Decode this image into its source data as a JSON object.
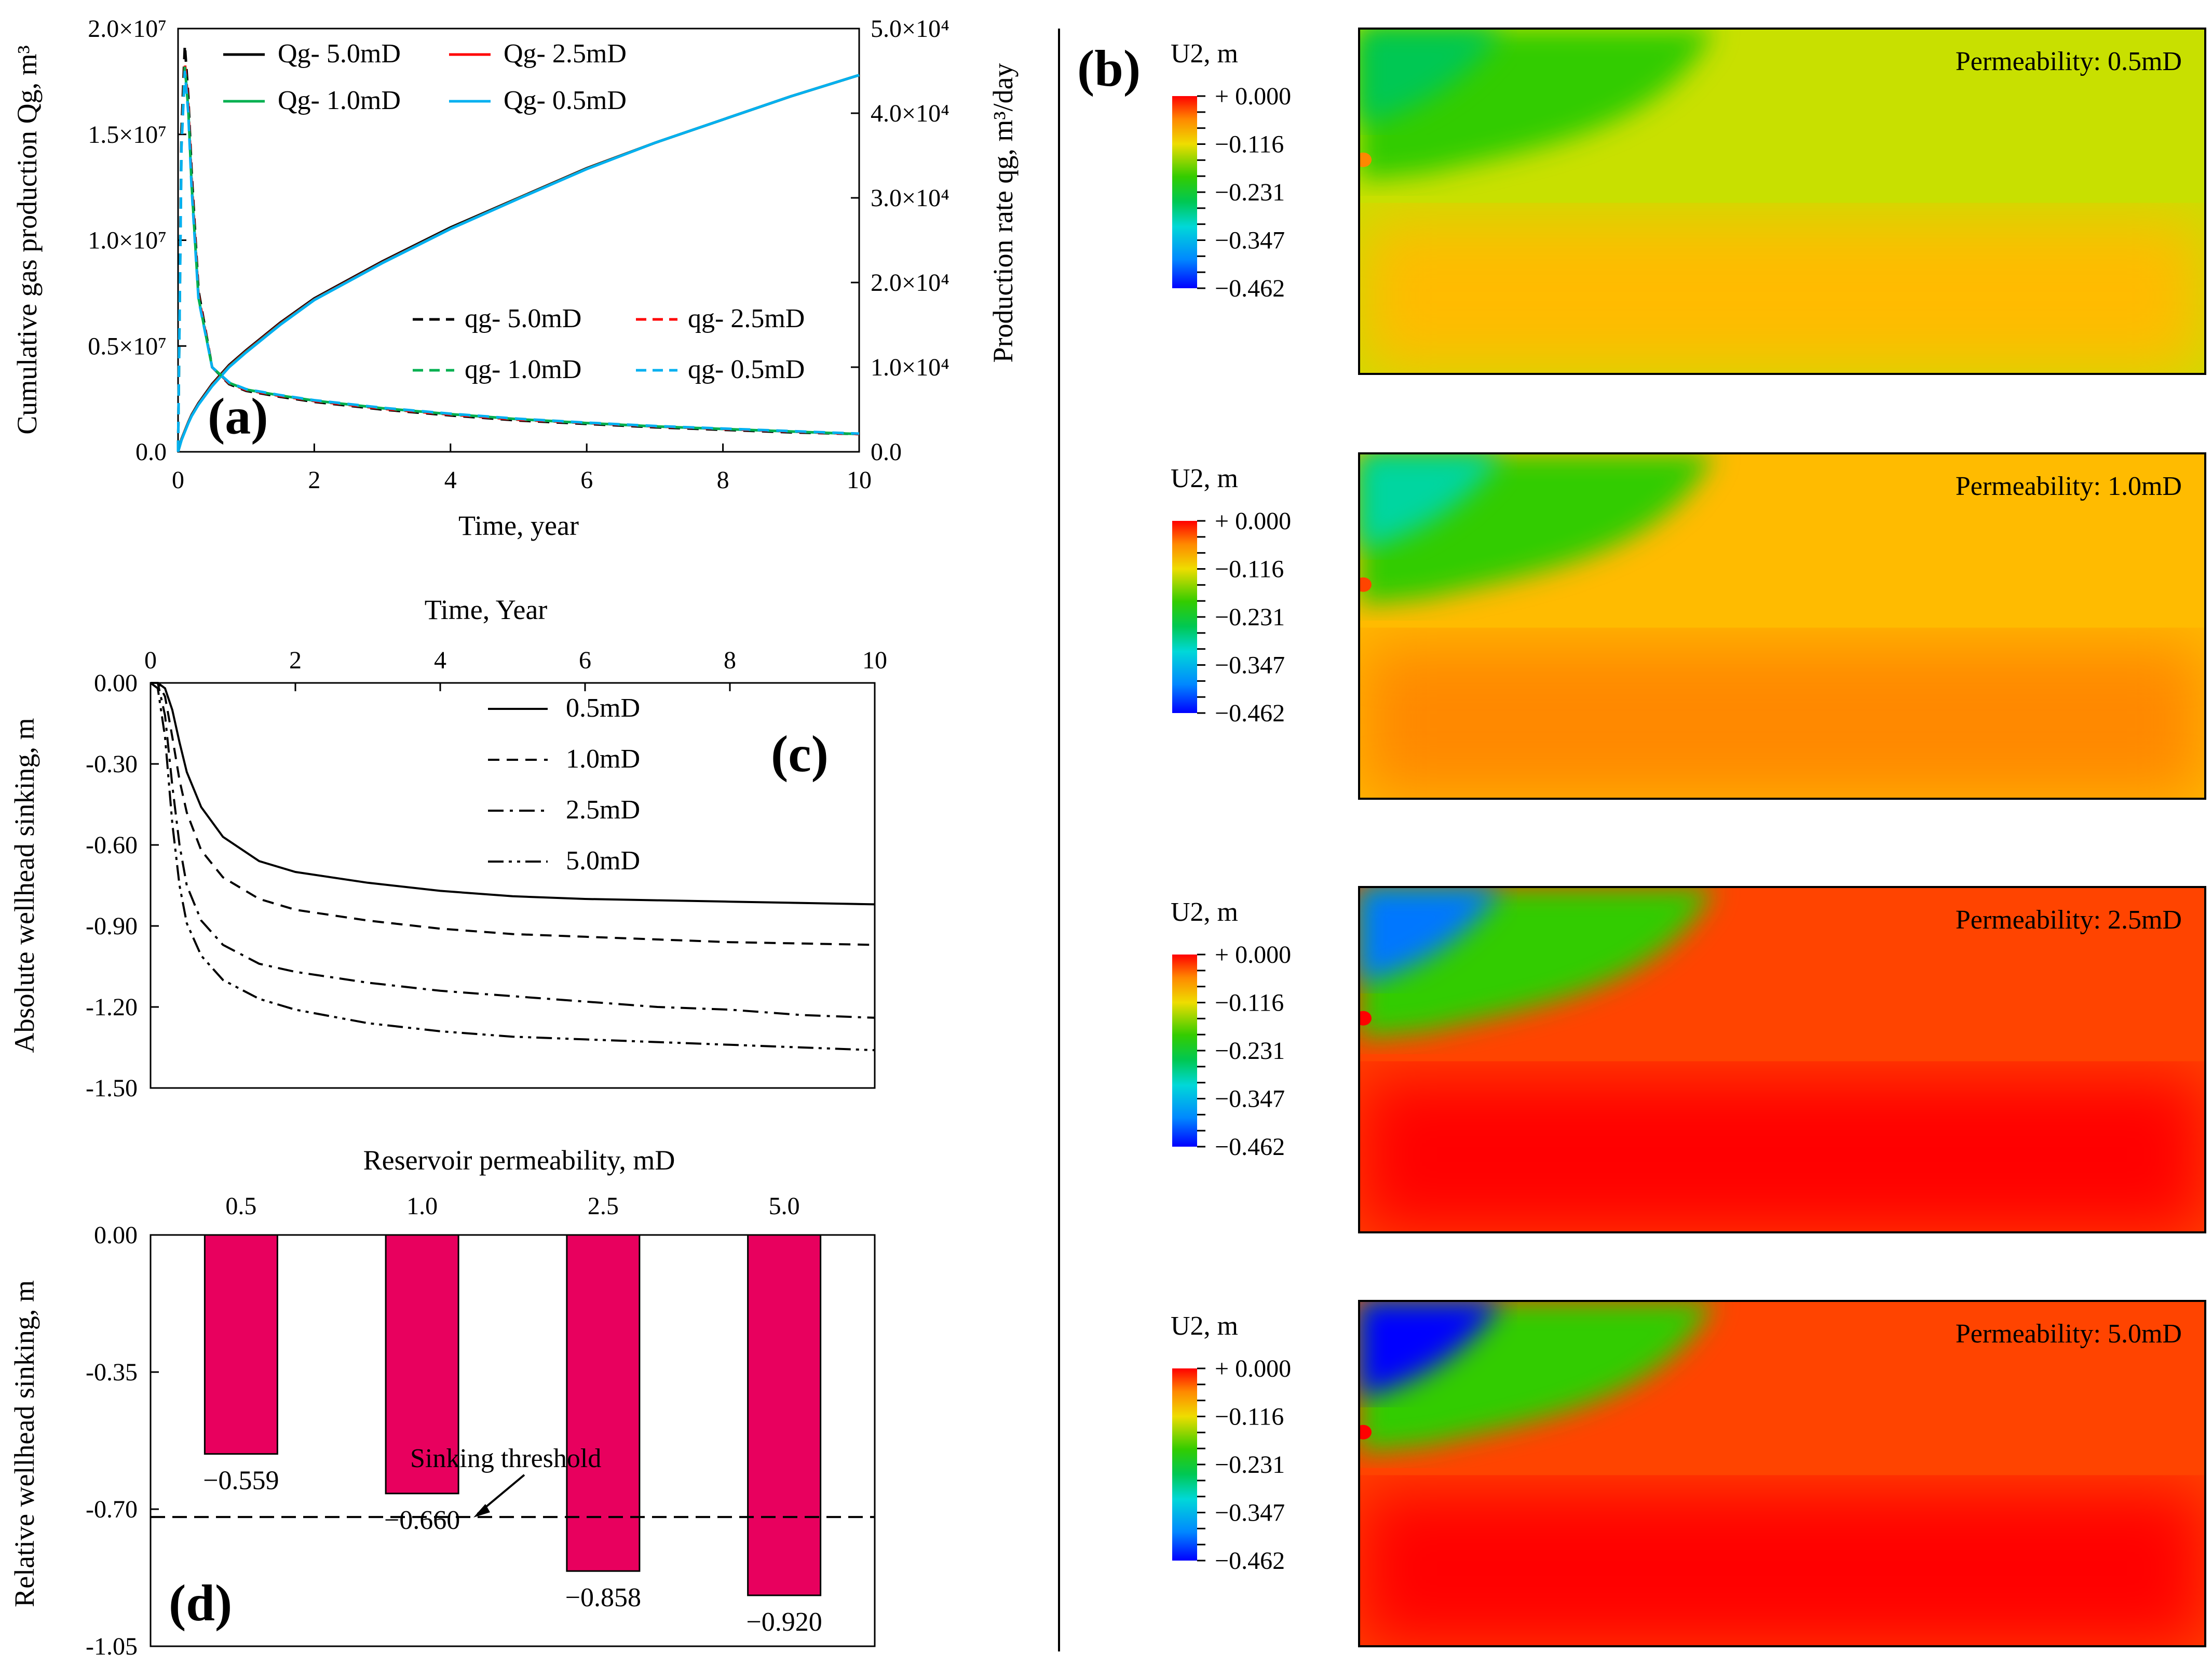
{
  "panel_a": {
    "label": "(a)",
    "xlabel": "Time, year",
    "ylabel_left": "Cumulative gas production Qg, m³",
    "ylabel_right": "Production rate qg, m³/day",
    "legend_Q": [
      "Qg-  5.0mD",
      "Qg-  2.5mD",
      "Qg-  1.0mD",
      "Qg-  0.5mD"
    ],
    "legend_q": [
      "qg-  5.0mD",
      "qg-  2.5mD",
      "qg-  1.0mD",
      "qg-  0.5mD"
    ]
  },
  "panel_b": {
    "label": "(b)",
    "colorbar_title": "U2, m",
    "colorbar_ticks": [
      "+ 0.000",
      "−0.116",
      "−0.231",
      "−0.347",
      "−0.462"
    ],
    "colors": [
      "#ff0000",
      "#ff4400",
      "#ff8800",
      "#ffbb00",
      "#eedd00",
      "#c8e000",
      "#80d600",
      "#33cc00",
      "#00c853",
      "#00d6a0",
      "#00d8d8",
      "#00a8ee",
      "#0077ff",
      "#0044f0",
      "#0000ff"
    ],
    "contours": [
      {
        "title": "Permeability:  0.5mD"
      },
      {
        "title": "Permeability:  1.0mD"
      },
      {
        "title": "Permeability:  2.5mD"
      },
      {
        "title": "Permeability:  5.0mD"
      }
    ]
  },
  "panel_c": {
    "label": "(c)",
    "legend": [
      "0.5mD",
      "1.0mD",
      "2.5mD",
      "5.0mD"
    ]
  },
  "panel_d": {
    "label": "(d)",
    "annotation": "Sinking threshold"
  },
  "chart_data": [
    {
      "type": "line",
      "id": "a",
      "title": "",
      "xlabel": "Time, year",
      "ylabel": "Cumulative gas production Qg, m³",
      "y2label": "Production rate qg, m³/day",
      "xlim": [
        0,
        10
      ],
      "ylim": [
        0,
        20000000
      ],
      "y2lim": [
        0,
        50000
      ],
      "xticks": [
        "0",
        "2",
        "4",
        "6",
        "8",
        "10"
      ],
      "yticks": [
        "0.0",
        "0.5×10⁷",
        "1.0×10⁷",
        "1.5×10⁷",
        "2.0×10⁷"
      ],
      "y2ticks": [
        "0.0",
        "1.0×10⁴",
        "2.0×10⁴",
        "3.0×10⁴",
        "4.0×10⁴",
        "5.0×10⁴"
      ],
      "x": [
        0,
        0.05,
        0.1,
        0.15,
        0.2,
        0.3,
        0.5,
        0.75,
        1,
        1.5,
        2,
        3,
        4,
        5,
        6,
        7,
        8,
        9,
        10
      ],
      "series": [
        {
          "name": "Qg- 5.0mD",
          "axis": "left",
          "color": "#000000",
          "dash": "solid",
          "values": [
            0,
            600000,
            1000000,
            1400000,
            1750000,
            2300000,
            3200000,
            4100000,
            4800000,
            6100000,
            7250000,
            9000000,
            10600000,
            12000000,
            13400000,
            14600000,
            15700000,
            16800000,
            17800000
          ]
        },
        {
          "name": "Qg- 2.5mD",
          "axis": "left",
          "color": "#ff0000",
          "dash": "solid",
          "values": [
            0,
            580000,
            980000,
            1380000,
            1720000,
            2260000,
            3150000,
            4050000,
            4750000,
            6050000,
            7200000,
            8950000,
            10550000,
            11980000,
            13380000,
            14600000,
            15700000,
            16800000,
            17800000
          ]
        },
        {
          "name": "Qg- 1.0mD",
          "axis": "left",
          "color": "#00b050",
          "dash": "solid",
          "values": [
            0,
            560000,
            960000,
            1360000,
            1700000,
            2240000,
            3120000,
            4020000,
            4720000,
            6020000,
            7180000,
            8930000,
            10540000,
            11970000,
            13370000,
            14600000,
            15700000,
            16800000,
            17800000
          ]
        },
        {
          "name": "Qg- 0.5mD",
          "axis": "left",
          "color": "#00b0f0",
          "dash": "solid",
          "values": [
            0,
            550000,
            950000,
            1350000,
            1690000,
            2230000,
            3100000,
            4000000,
            4700000,
            6000000,
            7170000,
            8920000,
            10530000,
            11960000,
            13360000,
            14600000,
            15700000,
            16800000,
            17800000
          ]
        },
        {
          "name": "qg- 5.0mD",
          "axis": "right",
          "color": "#000000",
          "dash": "dashed",
          "values": [
            0,
            38000,
            48000,
            42000,
            33000,
            19000,
            10000,
            8000,
            7200,
            6500,
            5900,
            5000,
            4300,
            3700,
            3300,
            2900,
            2600,
            2300,
            2100
          ]
        },
        {
          "name": "qg- 2.5mD",
          "axis": "right",
          "color": "#ff0000",
          "dash": "dashed",
          "values": [
            0,
            37000,
            46000,
            41000,
            32000,
            18500,
            10000,
            8100,
            7300,
            6600,
            6000,
            5100,
            4400,
            3800,
            3400,
            3000,
            2700,
            2400,
            2100
          ]
        },
        {
          "name": "qg- 1.0mD",
          "axis": "right",
          "color": "#00b050",
          "dash": "dashed",
          "values": [
            0,
            36500,
            45500,
            40500,
            31500,
            18200,
            10000,
            8150,
            7350,
            6650,
            6050,
            5150,
            4450,
            3850,
            3400,
            3000,
            2700,
            2400,
            2100
          ]
        },
        {
          "name": "qg- 0.5mD",
          "axis": "right",
          "color": "#00b0f0",
          "dash": "dashed",
          "values": [
            0,
            36000,
            45000,
            40000,
            31000,
            18000,
            10000,
            8200,
            7400,
            6700,
            6100,
            5200,
            4500,
            3900,
            3450,
            3050,
            2750,
            2450,
            2150
          ]
        }
      ]
    },
    {
      "type": "line",
      "id": "c",
      "title": "",
      "xlabel": "Time, Year",
      "ylabel": "Absolute wellhead sinking, m",
      "xlim": [
        0,
        10
      ],
      "ylim": [
        -1.5,
        0
      ],
      "xticks": [
        "0",
        "2",
        "4",
        "6",
        "8",
        "10"
      ],
      "yticks": [
        "0.00",
        "-0.30",
        "-0.60",
        "-0.90",
        "-1.20",
        "-1.50"
      ],
      "x": [
        0,
        0.1,
        0.2,
        0.3,
        0.4,
        0.5,
        0.7,
        1,
        1.5,
        2,
        3,
        4,
        5,
        6,
        7,
        8,
        9,
        10
      ],
      "series": [
        {
          "name": "0.5mD",
          "dash": "solid",
          "values": [
            0,
            0,
            -0.02,
            -0.1,
            -0.22,
            -0.33,
            -0.46,
            -0.57,
            -0.66,
            -0.7,
            -0.74,
            -0.77,
            -0.79,
            -0.8,
            -0.805,
            -0.81,
            -0.815,
            -0.82
          ]
        },
        {
          "name": "1.0mD",
          "dash": "dashed",
          "values": [
            0,
            0,
            -0.05,
            -0.2,
            -0.36,
            -0.48,
            -0.62,
            -0.72,
            -0.8,
            -0.84,
            -0.88,
            -0.91,
            -0.93,
            -0.94,
            -0.95,
            -0.96,
            -0.965,
            -0.97
          ]
        },
        {
          "name": "2.5mD",
          "dash": "dashdot",
          "values": [
            0,
            0,
            -0.12,
            -0.38,
            -0.6,
            -0.75,
            -0.88,
            -0.97,
            -1.04,
            -1.07,
            -1.11,
            -1.14,
            -1.16,
            -1.18,
            -1.2,
            -1.21,
            -1.23,
            -1.24
          ]
        },
        {
          "name": "5.0mD",
          "dash": "dashdotdot",
          "values": [
            0,
            -0.02,
            -0.2,
            -0.52,
            -0.75,
            -0.89,
            -1.01,
            -1.1,
            -1.17,
            -1.21,
            -1.26,
            -1.29,
            -1.31,
            -1.32,
            -1.33,
            -1.34,
            -1.35,
            -1.36
          ]
        }
      ]
    },
    {
      "type": "bar",
      "id": "d",
      "title": "",
      "xlabel": "Reservoir permeability, mD",
      "ylabel": "Relative wellhead sinking, m",
      "categories": [
        "0.5",
        "1.0",
        "2.5",
        "5.0"
      ],
      "values": [
        -0.559,
        -0.66,
        -0.858,
        -0.92
      ],
      "value_labels": [
        "−0.559",
        "−0.660",
        "−0.858",
        "−0.920"
      ],
      "threshold": -0.72,
      "ylim": [
        -1.05,
        0
      ],
      "yticks": [
        "0.00",
        "-0.35",
        "-0.70",
        "-1.05"
      ],
      "bar_color": "#e8005e"
    }
  ]
}
